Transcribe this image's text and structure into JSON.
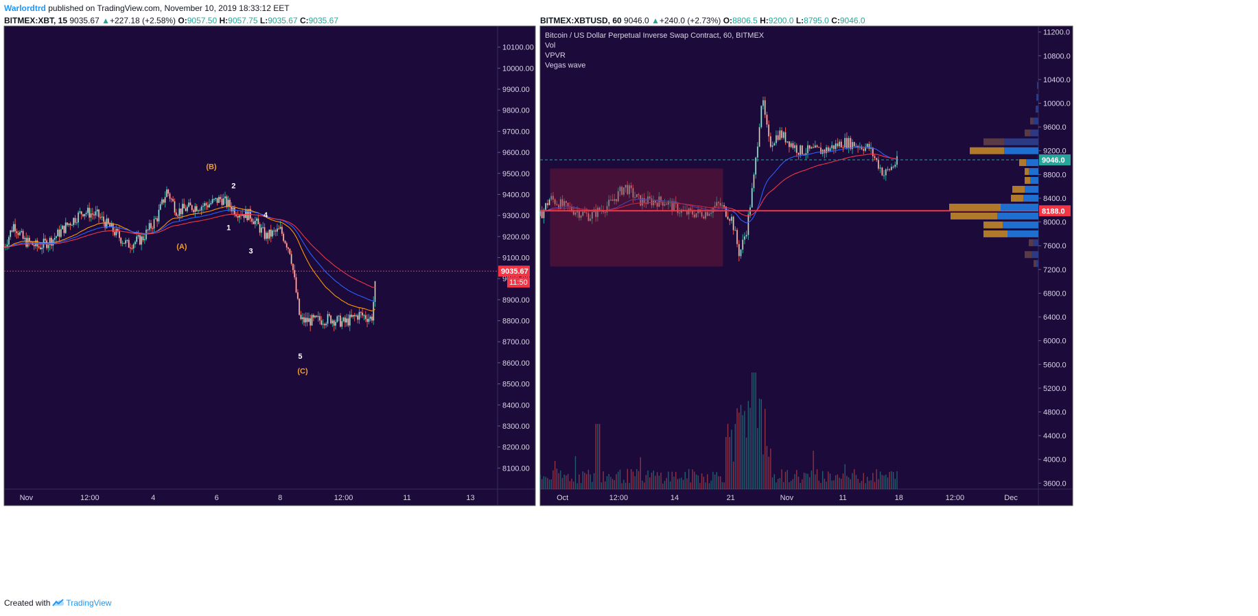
{
  "header": {
    "author": "Warlordtrd",
    "published_text": " published on TradingView.com, November 10, 2019 18:33:12 EET"
  },
  "left_legend": {
    "symbol": "BITMEX:XBT, 15",
    "price": "9035.67",
    "change": "+227.18 (+2.58%)",
    "o_label": "O:",
    "o_value": "9057.50",
    "h_label": "H:",
    "h_value": "9057.75",
    "l_label": "L:",
    "l_value": "9035.67",
    "c_label": "C:",
    "c_value": "9035.67"
  },
  "right_legend": {
    "symbol": "BITMEX:XBTUSD, 60",
    "price": "9046.0",
    "change": "+240.0 (+2.73%)",
    "o_label": "O:",
    "o_value": "8806.5",
    "h_label": "H:",
    "h_value": "9200.0",
    "l_label": "L:",
    "l_value": "8795.0",
    "c_label": "C:",
    "c_value": "9046.0",
    "study_lines": [
      "Bitcoin / US Dollar Perpetual Inverse Swap Contract, 60, BITMEX",
      "Vol",
      "VPVR",
      "Vegas wave"
    ]
  },
  "footer": {
    "created_with": "Created with",
    "brand": "TradingView"
  },
  "colors": {
    "chart_bg": "#1c0a3a",
    "up": "#26a69a",
    "down": "#ef5350",
    "candle_body": "#d8cfc6",
    "ema_orange": "#ff9800",
    "ema_red": "#f23645",
    "ema_blue": "#2962ff",
    "wave_orange": "#f0a030",
    "wave_white": "#ffffff",
    "price_tag": "#f23645",
    "green_tag": "#26a69a",
    "vpvr_blue": "#1e6fcf",
    "vpvr_gold": "#b07a2a",
    "vpvr_blue_dim": "#2c3a86",
    "vpvr_brown_dim": "#5a3a45"
  },
  "chart_data": [
    {
      "type": "candlestick",
      "symbol": "BITMEX:XBT",
      "interval": "15",
      "ylim": [
        8000,
        10200
      ],
      "y_ticks": [
        "10100.00",
        "10000.00",
        "9900.00",
        "9800.00",
        "9700.00",
        "9600.00",
        "9500.00",
        "9400.00",
        "9300.00",
        "9200.00",
        "9100.00",
        "9000.00",
        "8900.00",
        "8800.00",
        "8700.00",
        "8600.00",
        "8500.00",
        "8400.00",
        "8300.00",
        "8200.00",
        "8100.00"
      ],
      "x_ticks": [
        "Nov",
        "12:00",
        "4",
        "6",
        "8",
        "12:00",
        "11",
        "13"
      ],
      "close_series": [
        {
          "t": 0.0,
          "v": 9150
        },
        {
          "t": 0.02,
          "v": 9260
        },
        {
          "t": 0.04,
          "v": 9180
        },
        {
          "t": 0.07,
          "v": 9150
        },
        {
          "t": 0.1,
          "v": 9190
        },
        {
          "t": 0.13,
          "v": 9260
        },
        {
          "t": 0.16,
          "v": 9320
        },
        {
          "t": 0.19,
          "v": 9300
        },
        {
          "t": 0.22,
          "v": 9230
        },
        {
          "t": 0.25,
          "v": 9160
        },
        {
          "t": 0.28,
          "v": 9190
        },
        {
          "t": 0.31,
          "v": 9290
        },
        {
          "t": 0.33,
          "v": 9420
        },
        {
          "t": 0.35,
          "v": 9320
        },
        {
          "t": 0.38,
          "v": 9340
        },
        {
          "t": 0.41,
          "v": 9350
        },
        {
          "t": 0.44,
          "v": 9380
        },
        {
          "t": 0.47,
          "v": 9320
        },
        {
          "t": 0.5,
          "v": 9300
        },
        {
          "t": 0.53,
          "v": 9200
        },
        {
          "t": 0.56,
          "v": 9230
        },
        {
          "t": 0.58,
          "v": 9130
        },
        {
          "t": 0.6,
          "v": 8800
        },
        {
          "t": 0.63,
          "v": 8800
        },
        {
          "t": 0.66,
          "v": 8810
        },
        {
          "t": 0.69,
          "v": 8790
        },
        {
          "t": 0.72,
          "v": 8830
        },
        {
          "t": 0.745,
          "v": 8810
        },
        {
          "t": 0.755,
          "v": 9035.67
        }
      ],
      "last_price": "9035.67",
      "countdown": "11:50",
      "annotations": [
        {
          "text": "(B)",
          "style": "orange"
        },
        {
          "text": "2",
          "style": "white"
        },
        {
          "text": "1",
          "style": "white"
        },
        {
          "text": "(A)",
          "style": "orange"
        },
        {
          "text": "3",
          "style": "white"
        },
        {
          "text": "4",
          "style": "white"
        },
        {
          "text": "5",
          "style": "white"
        },
        {
          "text": "(C)",
          "style": "orange"
        }
      ]
    },
    {
      "type": "candlestick",
      "symbol": "BITMEX:XBTUSD",
      "interval": "60",
      "ylim": [
        3500,
        11300
      ],
      "y_ticks": [
        "11200.0",
        "10800.0",
        "10400.0",
        "10000.0",
        "9600.0",
        "9200.0",
        "8800.0",
        "8400.0",
        "8000.0",
        "7600.0",
        "7200.0",
        "6800.0",
        "6400.0",
        "6000.0",
        "5600.0",
        "5200.0",
        "4800.0",
        "4400.0",
        "4000.0",
        "3600.0"
      ],
      "x_ticks": [
        "Oct",
        "12:00",
        "14",
        "21",
        "Nov",
        "11",
        "18",
        "12:00",
        "Dec"
      ],
      "close_series": [
        {
          "t": 0.0,
          "v": 8100
        },
        {
          "t": 0.02,
          "v": 8400
        },
        {
          "t": 0.05,
          "v": 8250
        },
        {
          "t": 0.1,
          "v": 8100
        },
        {
          "t": 0.14,
          "v": 8300
        },
        {
          "t": 0.17,
          "v": 8600
        },
        {
          "t": 0.2,
          "v": 8350
        },
        {
          "t": 0.25,
          "v": 8350
        },
        {
          "t": 0.29,
          "v": 8150
        },
        {
          "t": 0.33,
          "v": 8150
        },
        {
          "t": 0.36,
          "v": 8300
        },
        {
          "t": 0.385,
          "v": 8050
        },
        {
          "t": 0.4,
          "v": 7450
        },
        {
          "t": 0.415,
          "v": 7900
        },
        {
          "t": 0.43,
          "v": 8800
        },
        {
          "t": 0.445,
          "v": 10100
        },
        {
          "t": 0.46,
          "v": 9300
        },
        {
          "t": 0.48,
          "v": 9500
        },
        {
          "t": 0.52,
          "v": 9200
        },
        {
          "t": 0.57,
          "v": 9200
        },
        {
          "t": 0.61,
          "v": 9350
        },
        {
          "t": 0.66,
          "v": 9250
        },
        {
          "t": 0.69,
          "v": 8800
        },
        {
          "t": 0.72,
          "v": 9046
        }
      ],
      "last_price": "9046.0",
      "poc_price": "8188.0",
      "range_box": {
        "from": 8100,
        "to": 7250,
        "label": ""
      },
      "volume": {
        "peak": "spike near Oct 25-26"
      }
    }
  ]
}
